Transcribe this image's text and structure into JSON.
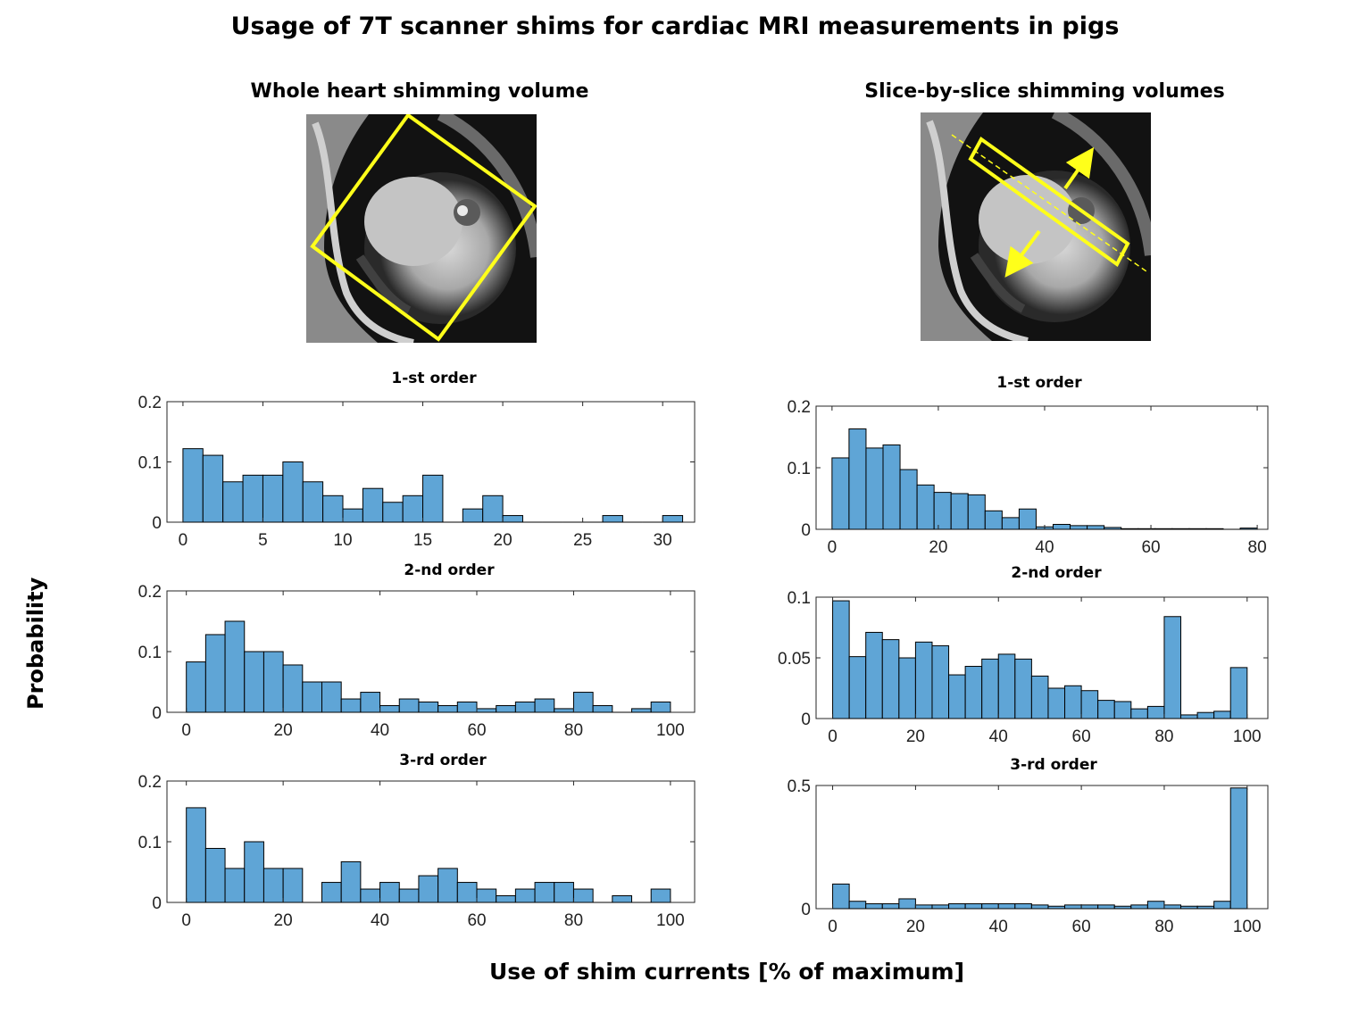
{
  "title": "Usage of 7T scanner shims for cardiac MRI measurements in pigs",
  "left_heading": "Whole heart shimming volume",
  "right_heading": "Slice-by-slice shimming volumes",
  "ylabel": "Probability",
  "xlabel": "Use of shim currents [% of maximum]",
  "colors": {
    "bar_fill": "#5fa5d6",
    "bar_edge": "#000000",
    "roi": "#ffff1a"
  },
  "chart_data": [
    {
      "id": "left-1st",
      "type": "bar",
      "title": "1-st order",
      "xlim": [
        -1,
        32
      ],
      "ylim": [
        0,
        0.2
      ],
      "bin_start": 0,
      "bin_width": 1.25,
      "xticks": [
        0,
        5,
        10,
        15,
        20,
        25,
        30
      ],
      "yticks": [
        "0",
        "0.1",
        "0.2"
      ],
      "ytick_values": [
        0,
        0.1,
        0.2
      ],
      "values": [
        0.122,
        0.111,
        0.067,
        0.078,
        0.078,
        0.1,
        0.067,
        0.044,
        0.022,
        0.056,
        0.033,
        0.044,
        0.078,
        0,
        0.022,
        0.044,
        0.011,
        0,
        0,
        0,
        0,
        0.011,
        0,
        0,
        0.011
      ]
    },
    {
      "id": "left-2nd",
      "type": "bar",
      "title": "2-nd order",
      "xlim": [
        -4,
        105
      ],
      "ylim": [
        0,
        0.2
      ],
      "bin_start": 0,
      "bin_width": 4,
      "xticks": [
        0,
        20,
        40,
        60,
        80,
        100
      ],
      "yticks": [
        "0",
        "0.1",
        "0.2"
      ],
      "ytick_values": [
        0,
        0.1,
        0.2
      ],
      "values": [
        0.083,
        0.128,
        0.15,
        0.1,
        0.1,
        0.078,
        0.05,
        0.05,
        0.022,
        0.033,
        0.011,
        0.022,
        0.017,
        0.011,
        0.017,
        0.006,
        0.011,
        0.017,
        0.022,
        0.006,
        0.033,
        0.011,
        0,
        0.006,
        0.017
      ]
    },
    {
      "id": "left-3rd",
      "type": "bar",
      "title": "3-rd order",
      "xlim": [
        -4,
        105
      ],
      "ylim": [
        0,
        0.2
      ],
      "bin_start": 0,
      "bin_width": 4,
      "xticks": [
        0,
        20,
        40,
        60,
        80,
        100
      ],
      "yticks": [
        "0",
        "0.1",
        "0.2"
      ],
      "ytick_values": [
        0,
        0.1,
        0.2
      ],
      "values": [
        0.156,
        0.089,
        0.056,
        0.1,
        0.056,
        0.056,
        0,
        0.033,
        0.067,
        0.022,
        0.033,
        0.022,
        0.044,
        0.056,
        0.033,
        0.022,
        0.011,
        0.022,
        0.033,
        0.033,
        0.022,
        0,
        0.011,
        0,
        0.022
      ]
    },
    {
      "id": "right-1st",
      "type": "bar",
      "title": "1-st order",
      "xlim": [
        -3,
        82
      ],
      "ylim": [
        0,
        0.2
      ],
      "bin_start": 0,
      "bin_width": 3.2,
      "xticks": [
        0,
        20,
        40,
        60,
        80
      ],
      "yticks": [
        "0",
        "0.1",
        "0.2"
      ],
      "ytick_values": [
        0,
        0.1,
        0.2
      ],
      "values": [
        0.116,
        0.163,
        0.132,
        0.137,
        0.097,
        0.072,
        0.06,
        0.058,
        0.056,
        0.03,
        0.019,
        0.033,
        0.004,
        0.008,
        0.006,
        0.006,
        0.003,
        0.001,
        0.001,
        0.001,
        0.001,
        0.001,
        0.001,
        0,
        0.002
      ]
    },
    {
      "id": "right-2nd",
      "type": "bar",
      "title": "2-nd order",
      "xlim": [
        -4,
        105
      ],
      "ylim": [
        0,
        0.1
      ],
      "bin_start": 0,
      "bin_width": 4,
      "xticks": [
        0,
        20,
        40,
        60,
        80,
        100
      ],
      "yticks": [
        "0",
        "0.05",
        "0.1"
      ],
      "ytick_values": [
        0,
        0.05,
        0.1
      ],
      "values": [
        0.097,
        0.051,
        0.071,
        0.065,
        0.05,
        0.063,
        0.06,
        0.036,
        0.043,
        0.049,
        0.053,
        0.049,
        0.035,
        0.025,
        0.027,
        0.023,
        0.015,
        0.014,
        0.008,
        0.01,
        0.084,
        0.003,
        0.005,
        0.006,
        0.042
      ]
    },
    {
      "id": "right-3rd",
      "type": "bar",
      "title": "3-rd order",
      "xlim": [
        -4,
        105
      ],
      "ylim": [
        0,
        0.5
      ],
      "bin_start": 0,
      "bin_width": 4,
      "xticks": [
        0,
        20,
        40,
        60,
        80,
        100
      ],
      "yticks": [
        "0",
        "0.5"
      ],
      "ytick_values": [
        0,
        0.5
      ],
      "values": [
        0.1,
        0.03,
        0.02,
        0.02,
        0.04,
        0.015,
        0.015,
        0.02,
        0.02,
        0.02,
        0.02,
        0.02,
        0.015,
        0.01,
        0.015,
        0.015,
        0.015,
        0.01,
        0.015,
        0.03,
        0.015,
        0.01,
        0.01,
        0.03,
        0.49
      ]
    }
  ]
}
